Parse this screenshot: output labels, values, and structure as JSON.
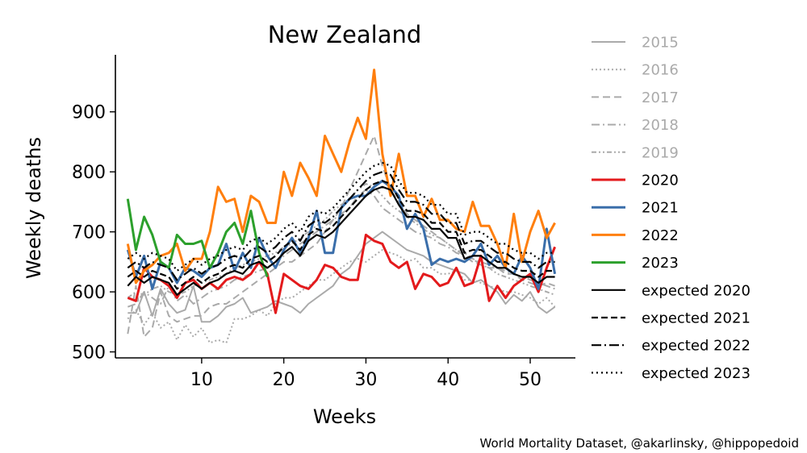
{
  "chart_data": {
    "type": "line",
    "title": "New Zealand",
    "xlabel": "Weeks",
    "ylabel": "Weekly deaths",
    "xlim": [
      -0.5,
      55.5
    ],
    "ylim": [
      490,
      995
    ],
    "xticks": [
      10,
      20,
      30,
      40,
      50
    ],
    "yticks": [
      500,
      600,
      700,
      800,
      900
    ],
    "grid": false,
    "legend": "outside right",
    "credit": "World Mortality Dataset, @akarlinsky, @hippopedoid",
    "series": [
      {
        "name": "2015",
        "color": "#aaaaaa",
        "dash": "",
        "width": 2,
        "label_color": "#aaaaaa",
        "x_start": 1,
        "values": [
          565,
          565,
          600,
          560,
          605,
          580,
          565,
          570,
          610,
          550,
          550,
          560,
          575,
          580,
          590,
          565,
          570,
          575,
          585,
          580,
          575,
          565,
          580,
          590,
          600,
          610,
          630,
          640,
          660,
          680,
          690,
          700,
          690,
          680,
          670,
          665,
          660,
          650,
          645,
          640,
          635,
          630,
          615,
          620,
          610,
          600,
          580,
          595,
          585,
          600,
          575,
          565,
          575
        ]
      },
      {
        "name": "2016",
        "color": "#aaaaaa",
        "dash": "2,3",
        "width": 2,
        "label_color": "#aaaaaa",
        "x_start": 1,
        "values": [
          555,
          570,
          545,
          565,
          540,
          550,
          520,
          545,
          525,
          540,
          515,
          520,
          515,
          555,
          555,
          560,
          570,
          560,
          580,
          590,
          590,
          600,
          610,
          620,
          620,
          630,
          640,
          650,
          655,
          650,
          660,
          670,
          665,
          660,
          650,
          655,
          640,
          640,
          630,
          630,
          635,
          620,
          620,
          615,
          610,
          605,
          600,
          600,
          595,
          590,
          580,
          590,
          575
        ]
      },
      {
        "name": "2017",
        "color": "#aaaaaa",
        "dash": "9,5",
        "width": 2,
        "label_color": "#aaaaaa",
        "x_start": 1,
        "values": [
          530,
          610,
          525,
          540,
          600,
          560,
          550,
          555,
          560,
          560,
          575,
          580,
          580,
          590,
          600,
          610,
          620,
          630,
          640,
          650,
          650,
          660,
          670,
          680,
          700,
          720,
          740,
          770,
          800,
          830,
          860,
          810,
          770,
          750,
          730,
          720,
          710,
          700,
          690,
          680,
          670,
          660,
          650,
          645,
          640,
          640,
          630,
          630,
          620,
          615,
          610,
          615,
          610
        ]
      },
      {
        "name": "2018",
        "color": "#aaaaaa",
        "dash": "10,4,2,4",
        "width": 2,
        "label_color": "#aaaaaa",
        "x_start": 1,
        "values": [
          575,
          580,
          600,
          590,
          580,
          610,
          585,
          595,
          580,
          590,
          600,
          605,
          610,
          620,
          625,
          630,
          635,
          640,
          650,
          660,
          670,
          680,
          690,
          700,
          710,
          720,
          730,
          740,
          760,
          770,
          760,
          740,
          730,
          720,
          710,
          700,
          695,
          690,
          680,
          675,
          665,
          660,
          655,
          650,
          645,
          640,
          635,
          630,
          625,
          620,
          615,
          610,
          605
        ]
      },
      {
        "name": "2019",
        "color": "#aaaaaa",
        "dash": "6,3,2,3,2,3",
        "width": 2,
        "label_color": "#aaaaaa",
        "x_start": 1,
        "values": [
          590,
          600,
          595,
          605,
          610,
          600,
          595,
          600,
          610,
          615,
          620,
          625,
          630,
          640,
          645,
          650,
          655,
          660,
          665,
          675,
          680,
          690,
          700,
          710,
          720,
          735,
          745,
          755,
          770,
          780,
          775,
          760,
          745,
          735,
          725,
          715,
          705,
          695,
          690,
          680,
          670,
          665,
          655,
          645,
          640,
          630,
          625,
          620,
          615,
          610,
          605,
          600,
          595
        ]
      },
      {
        "name": "2020",
        "color": "#e31a1c",
        "dash": "",
        "width": 3,
        "label_color": "#000000",
        "x_start": 1,
        "values": [
          590,
          585,
          640,
          625,
          620,
          610,
          590,
          615,
          620,
          605,
          615,
          605,
          620,
          625,
          620,
          630,
          650,
          630,
          565,
          630,
          620,
          610,
          605,
          620,
          645,
          640,
          625,
          620,
          620,
          695,
          685,
          680,
          650,
          640,
          650,
          605,
          630,
          625,
          610,
          615,
          640,
          610,
          615,
          660,
          585,
          610,
          590,
          610,
          620,
          630,
          600,
          640,
          675
        ]
      },
      {
        "name": "2021",
        "color": "#3a6eaa",
        "dash": "",
        "width": 3,
        "label_color": "#000000",
        "x_start": 1,
        "values": [
          670,
          625,
          660,
          605,
          650,
          640,
          615,
          640,
          635,
          625,
          640,
          645,
          680,
          635,
          665,
          640,
          690,
          660,
          640,
          670,
          690,
          665,
          690,
          735,
          665,
          665,
          740,
          755,
          760,
          760,
          775,
          785,
          775,
          760,
          705,
          730,
          705,
          645,
          655,
          650,
          655,
          650,
          660,
          680,
          645,
          660,
          640,
          630,
          660,
          640,
          605,
          705,
          630
        ]
      },
      {
        "name": "2022",
        "color": "#ff7f0e",
        "dash": "",
        "width": 3,
        "label_color": "#000000",
        "x_start": 1,
        "values": [
          680,
          615,
          635,
          645,
          660,
          665,
          680,
          635,
          655,
          655,
          700,
          775,
          750,
          755,
          700,
          760,
          750,
          715,
          715,
          800,
          760,
          815,
          790,
          760,
          860,
          830,
          800,
          850,
          890,
          855,
          970,
          830,
          760,
          830,
          760,
          760,
          725,
          755,
          720,
          720,
          705,
          700,
          750,
          710,
          710,
          680,
          640,
          730,
          650,
          700,
          735,
          690,
          715
        ]
      },
      {
        "name": "2023",
        "color": "#2ca02c",
        "dash": "",
        "width": 3,
        "label_color": "#000000",
        "x_start": 1,
        "values": [
          755,
          670,
          725,
          695,
          650,
          640,
          695,
          680,
          680,
          685,
          640,
          665,
          700,
          715,
          680,
          735,
          665,
          625
        ]
      },
      {
        "name": "expected 2020",
        "color": "#000000",
        "dash": "",
        "width": 2.2,
        "label_color": "#000000",
        "x_start": 1,
        "values": [
          610,
          625,
          615,
          625,
          620,
          615,
          595,
          605,
          615,
          605,
          615,
          620,
          630,
          635,
          630,
          645,
          650,
          640,
          650,
          665,
          675,
          660,
          685,
          695,
          690,
          700,
          715,
          730,
          745,
          760,
          770,
          775,
          770,
          745,
          725,
          725,
          720,
          705,
          705,
          690,
          690,
          655,
          660,
          660,
          650,
          640,
          640,
          630,
          625,
          625,
          615,
          625,
          625
        ]
      },
      {
        "name": "expected 2021",
        "color": "#000000",
        "dash": "8,4",
        "width": 2.2,
        "label_color": "#000000",
        "x_start": 1,
        "values": [
          625,
          635,
          625,
          635,
          630,
          625,
          605,
          615,
          625,
          615,
          625,
          630,
          640,
          645,
          640,
          655,
          660,
          650,
          660,
          675,
          685,
          670,
          695,
          705,
          700,
          710,
          725,
          740,
          755,
          770,
          780,
          785,
          780,
          755,
          735,
          735,
          730,
          715,
          715,
          700,
          700,
          665,
          670,
          670,
          660,
          650,
          650,
          640,
          635,
          635,
          625,
          635,
          635
        ]
      },
      {
        "name": "expected 2022",
        "color": "#000000",
        "dash": "12,4,2,4",
        "width": 2.2,
        "label_color": "#000000",
        "x_start": 1,
        "values": [
          640,
          650,
          640,
          650,
          645,
          640,
          620,
          630,
          640,
          630,
          640,
          645,
          655,
          660,
          655,
          670,
          675,
          665,
          675,
          690,
          700,
          685,
          710,
          720,
          715,
          725,
          740,
          755,
          770,
          785,
          795,
          800,
          795,
          770,
          750,
          750,
          745,
          730,
          730,
          715,
          715,
          680,
          685,
          685,
          675,
          665,
          665,
          655,
          650,
          650,
          640,
          650,
          650
        ]
      },
      {
        "name": "expected 2023",
        "color": "#000000",
        "dash": "2,4",
        "width": 2.2,
        "label_color": "#000000",
        "x_start": 1,
        "values": [
          655,
          665,
          655,
          665,
          660,
          655,
          635,
          645,
          655,
          645,
          655,
          660,
          670,
          675,
          670,
          685,
          690,
          680,
          690,
          705,
          715,
          700,
          725,
          735,
          730,
          740,
          755,
          770,
          785,
          800,
          810,
          815,
          810,
          785,
          765,
          765,
          760,
          745,
          745,
          730,
          730,
          695,
          700,
          700,
          690,
          680,
          680,
          670,
          665,
          665,
          655,
          665,
          665
        ]
      }
    ]
  }
}
